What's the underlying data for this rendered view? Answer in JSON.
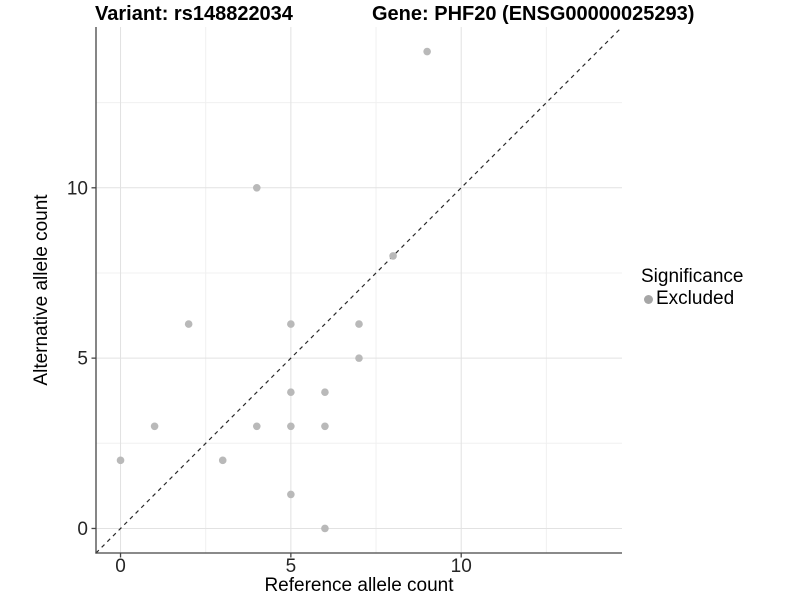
{
  "chart_data": {
    "type": "scatter",
    "title_left": "Variant: rs148822034",
    "title_right": "Gene: PHF20 (ENSG00000025293)",
    "xlabel": "Reference allele count",
    "ylabel": "Alternative allele count",
    "xlim": [
      -0.72,
      14.72
    ],
    "ylim": [
      -0.72,
      14.72
    ],
    "x_ticks": [
      0,
      5,
      10
    ],
    "x_tick_labels": [
      "0",
      "5",
      "10"
    ],
    "y_ticks": [
      0,
      5,
      10
    ],
    "y_tick_labels": [
      "0",
      "5",
      "10"
    ],
    "x_minor_ticks": [
      2.5,
      7.5,
      12.5
    ],
    "y_minor_ticks": [
      2.5,
      7.5,
      12.5
    ],
    "grid": true,
    "identity_line": {
      "style": "dashed",
      "slope": 1,
      "intercept": 0,
      "color": "#2a2a2a"
    },
    "series": [
      {
        "name": "Excluded",
        "color": "#b9b9b9",
        "point_radius": 3.8,
        "points": [
          [
            0,
            2
          ],
          [
            1,
            3
          ],
          [
            2,
            6
          ],
          [
            3,
            2
          ],
          [
            4,
            3
          ],
          [
            4,
            10
          ],
          [
            5,
            1
          ],
          [
            5,
            3
          ],
          [
            5,
            4
          ],
          [
            5,
            6
          ],
          [
            6,
            0
          ],
          [
            6,
            3
          ],
          [
            6,
            4
          ],
          [
            7,
            5
          ],
          [
            7,
            6
          ],
          [
            8,
            8
          ],
          [
            9,
            14
          ]
        ]
      }
    ],
    "legend": {
      "title": "Significance",
      "position": "right",
      "items": [
        {
          "label": "Excluded",
          "color": "#a6a6a6"
        }
      ]
    },
    "colors": {
      "background": "#ffffff",
      "grid_major": "#e2e2e2",
      "grid_minor": "#f0f0f0",
      "axis": "#454545",
      "tick_text": "#262626",
      "title_text": "#000000"
    }
  }
}
